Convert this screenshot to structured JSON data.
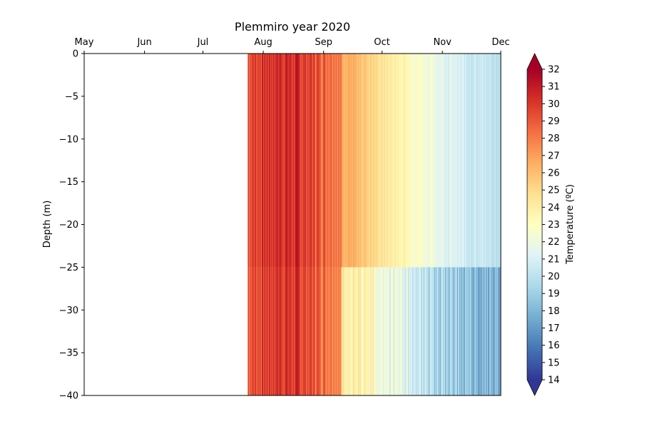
{
  "chart_data": {
    "type": "heatmap",
    "title": "Plemmiro year 2020",
    "ylabel": "Depth (m)",
    "colorbar_label": "Temperature (ºC)",
    "x_axis_position": "top",
    "x_tick_labels": [
      "May",
      "Jun",
      "Jul",
      "Aug",
      "Sep",
      "Oct",
      "Nov",
      "Dec"
    ],
    "x_range": [
      "2020-05-01",
      "2020-12-01"
    ],
    "y_ticks": [
      0,
      -5,
      -10,
      -15,
      -20,
      -25,
      -30,
      -35,
      -40
    ],
    "ylim": [
      -40,
      0
    ],
    "colorbar_ticks": [
      14,
      15,
      16,
      17,
      18,
      19,
      20,
      21,
      22,
      23,
      24,
      25,
      26,
      27,
      28,
      29,
      30,
      31,
      32
    ],
    "colorbar_range": [
      14,
      32
    ],
    "colormap": "RdYlBu_r",
    "colormap_stops": [
      "#313695",
      "#4575b4",
      "#74add1",
      "#abd9e9",
      "#e0f3f8",
      "#ffffbf",
      "#fee090",
      "#fdae61",
      "#f46d43",
      "#d73027",
      "#a50026"
    ],
    "grid": false,
    "data_start": "2020-07-24",
    "data_end": "2020-12-01",
    "surface_temperature_profile": [
      {
        "date": "2020-07-24",
        "temp": 29.5
      },
      {
        "date": "2020-08-01",
        "temp": 30.0
      },
      {
        "date": "2020-08-10",
        "temp": 30.5
      },
      {
        "date": "2020-08-20",
        "temp": 30.0
      },
      {
        "date": "2020-08-31",
        "temp": 29.0
      },
      {
        "date": "2020-09-07",
        "temp": 28.8
      },
      {
        "date": "2020-09-12",
        "temp": 26.5
      },
      {
        "date": "2020-09-20",
        "temp": 26.0
      },
      {
        "date": "2020-10-01",
        "temp": 24.5
      },
      {
        "date": "2020-10-13",
        "temp": 23.5
      },
      {
        "date": "2020-10-27",
        "temp": 22.0
      },
      {
        "date": "2020-11-10",
        "temp": 20.8
      },
      {
        "date": "2020-12-01",
        "temp": 20.0
      }
    ]
  }
}
